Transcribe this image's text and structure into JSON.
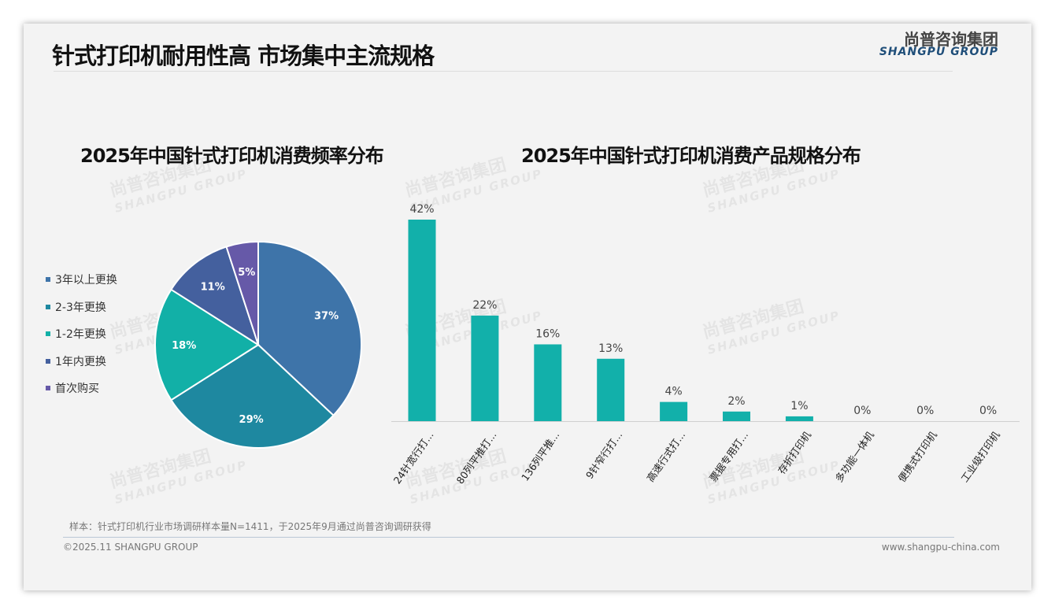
{
  "header": {
    "title": "针式打印机耐用性高 市场集中主流规格",
    "logo_cn": "尚普咨询集团",
    "logo_en": "SHANGPU GROUP"
  },
  "watermark": {
    "cn": "尚普咨询集团",
    "en": "SHANGPU GROUP"
  },
  "footer": {
    "note": "样本：针式打印机行业市场调研样本量N=1411，于2025年9月通过尚普咨询调研获得",
    "copyright": "©2025.11 SHANGPU GROUP",
    "url": "www.shangpu-china.com"
  },
  "chart_data": [
    {
      "type": "pie",
      "title": "2025年中国针式打印机消费频率分布",
      "legend_position": "left",
      "categories": [
        "3年以上更换",
        "2-3年更换",
        "1-2年更换",
        "1年内更换",
        "首次购买"
      ],
      "values": [
        37,
        29,
        18,
        11,
        5
      ],
      "labels": [
        "37%",
        "29%",
        "18%",
        "11%",
        "5%"
      ],
      "colors": [
        "#3e74a9",
        "#1e88a0",
        "#12b0a7",
        "#44609e",
        "#6659a8"
      ]
    },
    {
      "type": "bar",
      "title": "2025年中国针式打印机消费产品规格分布",
      "categories": [
        "24针宽行打...",
        "80列平推打...",
        "136列平推...",
        "9针窄行打...",
        "高速行式打...",
        "票据专用打...",
        "存折打印机",
        "多功能一体机",
        "便携式打印机",
        "工业级打印机"
      ],
      "values": [
        42,
        22,
        16,
        13,
        4,
        2,
        1,
        0,
        0,
        0
      ],
      "labels": [
        "42%",
        "22%",
        "16%",
        "13%",
        "4%",
        "2%",
        "1%",
        "0%",
        "0%",
        "0%"
      ],
      "color": "#12b0aa",
      "ylim": [
        0,
        42
      ]
    }
  ]
}
